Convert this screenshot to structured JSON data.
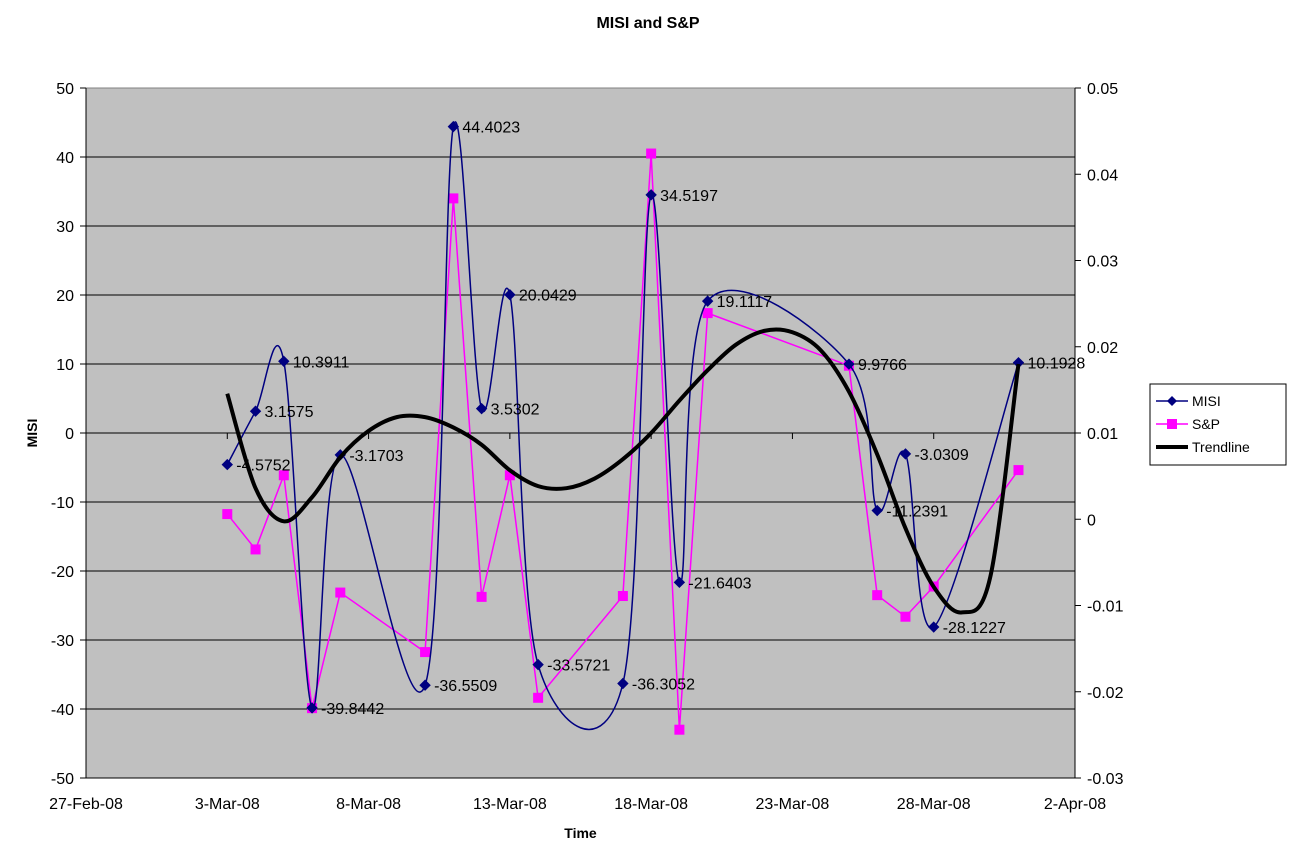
{
  "chart_data": {
    "type": "line",
    "title": "MISI and S&P",
    "xlabel": "Time",
    "ylabel": "MISI",
    "y2label": "",
    "xlim": [
      "2008-02-27",
      "2008-04-02"
    ],
    "ylim": [
      -50,
      50
    ],
    "y2lim": [
      -0.03,
      0.05
    ],
    "y_ticks": [
      "-50",
      "-40",
      "-30",
      "-20",
      "-10",
      "0",
      "10",
      "20",
      "30",
      "40",
      "50"
    ],
    "y2_ticks": [
      "-0.03",
      "-0.02",
      "-0.01",
      "0",
      "0.01",
      "0.02",
      "0.03",
      "0.04",
      "0.05"
    ],
    "x_ticks": [
      "27-Feb-08",
      "3-Mar-08",
      "8-Mar-08",
      "13-Mar-08",
      "18-Mar-08",
      "23-Mar-08",
      "28-Mar-08",
      "2-Apr-08"
    ],
    "grid": "horizontal",
    "background": "#c0c0c0",
    "legend": "right",
    "series": [
      {
        "name": "MISI",
        "axis": "left",
        "color": "#000080",
        "marker": "diamond",
        "smooth": true,
        "x": [
          "2008-03-03",
          "2008-03-04",
          "2008-03-05",
          "2008-03-06",
          "2008-03-07",
          "2008-03-10",
          "2008-03-11",
          "2008-03-12",
          "2008-03-13",
          "2008-03-14",
          "2008-03-17",
          "2008-03-18",
          "2008-03-19",
          "2008-03-20",
          "2008-03-25",
          "2008-03-26",
          "2008-03-27",
          "2008-03-28",
          "2008-03-31"
        ],
        "values": [
          -4.5752,
          3.1575,
          10.3911,
          -39.8442,
          -3.1703,
          -36.5509,
          44.4023,
          3.5302,
          20.0429,
          -33.5721,
          -36.3052,
          34.5197,
          -21.6403,
          19.1117,
          9.9766,
          -11.2391,
          -3.0309,
          -28.1227,
          10.1928
        ],
        "labels": [
          "-4.5752",
          "3.1575",
          "10.3911",
          "-39.8442",
          "-3.1703",
          "-36.5509",
          "44.4023",
          "3.5302",
          "20.0429",
          "-33.5721",
          "-36.3052",
          "34.5197",
          "-21.6403",
          "19.1117",
          "9.9766",
          "-11.2391",
          "-3.0309",
          "-28.1227",
          "10.1928"
        ]
      },
      {
        "name": "S&P",
        "axis": "right",
        "color": "#ff00ff",
        "marker": "square",
        "smooth": false,
        "x": [
          "2008-03-03",
          "2008-03-04",
          "2008-03-05",
          "2008-03-06",
          "2008-03-07",
          "2008-03-10",
          "2008-03-11",
          "2008-03-12",
          "2008-03-13",
          "2008-03-14",
          "2008-03-17",
          "2008-03-18",
          "2008-03-19",
          "2008-03-20",
          "2008-03-25",
          "2008-03-26",
          "2008-03-27",
          "2008-03-28",
          "2008-03-31"
        ],
        "values": [
          0.0006,
          -0.0035,
          0.0051,
          -0.0219,
          -0.0085,
          -0.0154,
          0.0372,
          -0.009,
          0.0051,
          -0.0207,
          -0.0089,
          0.0424,
          -0.0244,
          0.0239,
          0.0178,
          -0.0088,
          -0.0113,
          -0.0078,
          0.0057
        ]
      },
      {
        "name": "Trendline",
        "axis": "left",
        "color": "#000000",
        "type": "polynomial-fit",
        "x": [
          "2008-03-03",
          "2008-03-04",
          "2008-03-05",
          "2008-03-06",
          "2008-03-07",
          "2008-03-08",
          "2008-03-09",
          "2008-03-10",
          "2008-03-11",
          "2008-03-12",
          "2008-03-13",
          "2008-03-14",
          "2008-03-15",
          "2008-03-16",
          "2008-03-17",
          "2008-03-18",
          "2008-03-19",
          "2008-03-20",
          "2008-03-21",
          "2008-03-22",
          "2008-03-23",
          "2008-03-24",
          "2008-03-25",
          "2008-03-26",
          "2008-03-27",
          "2008-03-28",
          "2008-03-29",
          "2008-03-30",
          "2008-03-31"
        ],
        "values": [
          5.7,
          -8.0,
          -12.8,
          -9.3,
          -3.5,
          0.3,
          2.3,
          2.3,
          0.8,
          -1.7,
          -5.4,
          -7.7,
          -8.0,
          -6.6,
          -3.8,
          0.0,
          4.7,
          9.1,
          12.8,
          14.8,
          14.6,
          12.0,
          6.0,
          -3.1,
          -13.8,
          -22.3,
          -26.0,
          -20.9,
          10.0
        ]
      }
    ]
  }
}
